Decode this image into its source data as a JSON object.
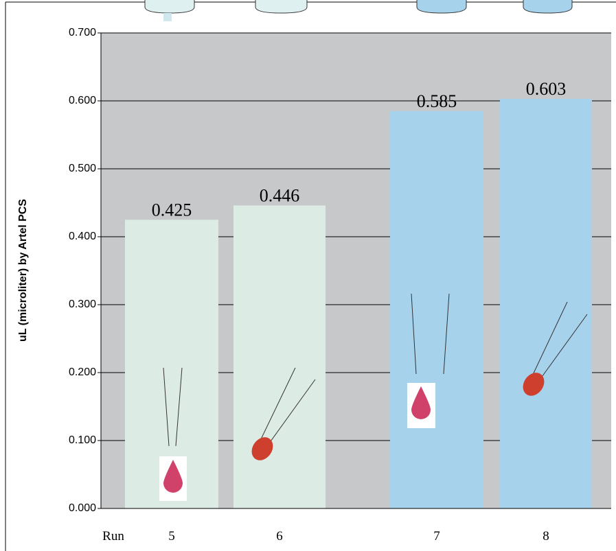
{
  "chart_data": {
    "type": "bar",
    "categories": [
      "5",
      "6",
      "7",
      "8"
    ],
    "values": [
      0.425,
      0.446,
      0.585,
      0.603
    ],
    "colors": [
      "#dcebe4",
      "#dcebe4",
      "#a6d2ec",
      "#a6d2ec"
    ],
    "x_label": "Run",
    "y_label": "uL (microliter) by Artel PCS",
    "ylim": [
      0,
      0.7
    ],
    "yticks": [
      {
        "value": 0,
        "label": "0.000"
      },
      {
        "value": 0.1,
        "label": "0.100"
      },
      {
        "value": 0.2,
        "label": "0.200"
      },
      {
        "value": 0.3,
        "label": "0.300"
      },
      {
        "value": 0.4,
        "label": "0.400"
      },
      {
        "value": 0.5,
        "label": "0.500"
      },
      {
        "value": 0.6,
        "label": "0.600"
      },
      {
        "value": 0.7,
        "label": "0.700"
      }
    ],
    "grid": true
  }
}
